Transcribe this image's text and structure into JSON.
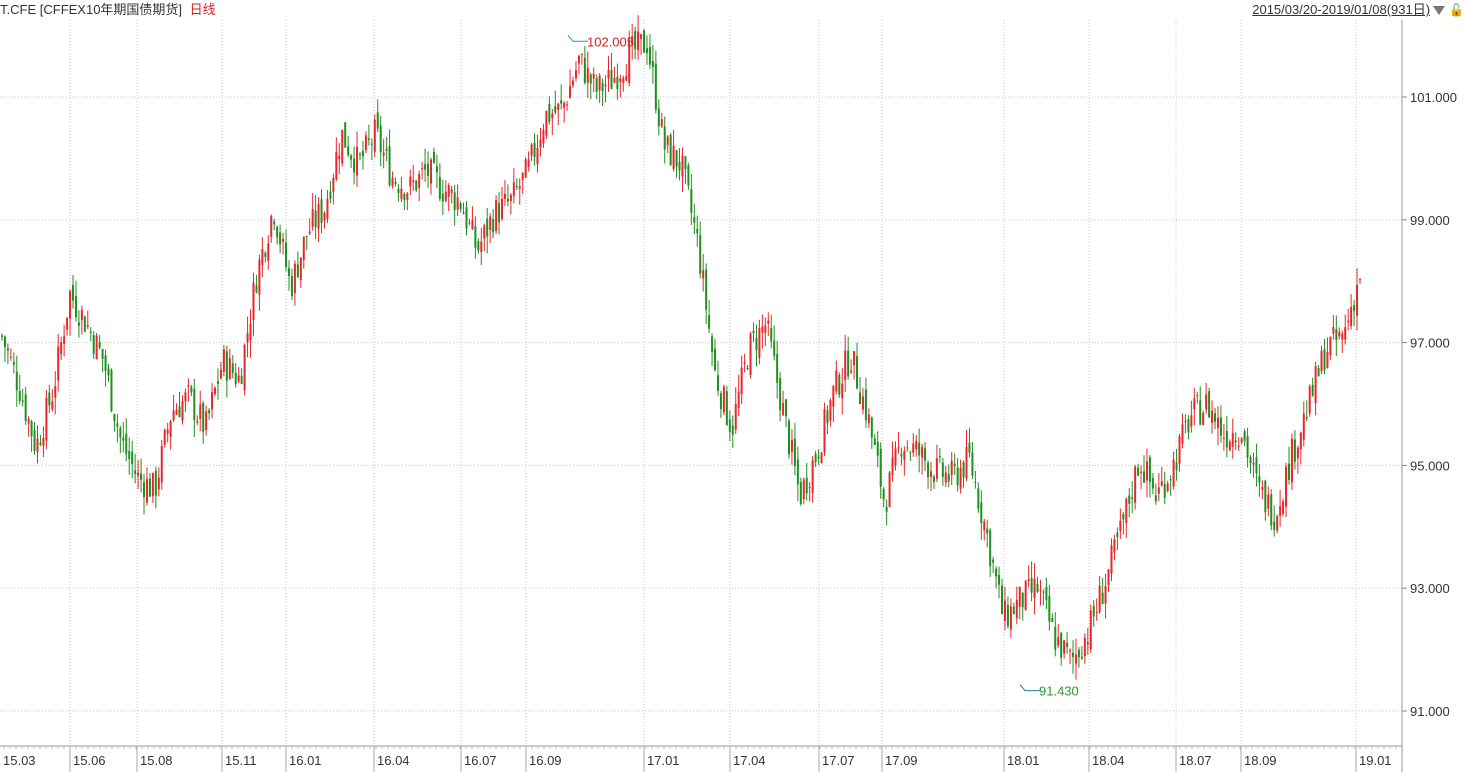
{
  "header": {
    "symbol": "T.CFE",
    "name": "[CFFEX10年期国债期货]",
    "period": "日线",
    "date_range": "2015/03/20-2019/01/08(931日)",
    "dropdown_icon": "chevron-down-icon",
    "lock_icon": "lock-icon"
  },
  "colors": {
    "up": "#e8262b",
    "down": "#1f8f1f",
    "grid": "#c8c8c8",
    "high_annotation": "#d42020",
    "low_annotation": "#2a9a2a"
  },
  "chart_data": {
    "type": "line",
    "title": "",
    "xlabel": "",
    "ylabel": "",
    "ylim": [
      90.4,
      102.6
    ],
    "grid": true,
    "y_ticks": [
      "91.000",
      "93.000",
      "95.000",
      "97.000",
      "99.000",
      "101.000"
    ],
    "x_ticks": [
      "15.03",
      "15.06",
      "15.08",
      "15.11",
      "16.01",
      "16.04",
      "16.07",
      "16.09",
      "17.01",
      "17.04",
      "17.07",
      "17.09",
      "18.01",
      "18.04",
      "18.07",
      "18.09",
      "19.01"
    ],
    "annotations": [
      {
        "label": "102.005",
        "value": 102.005,
        "type": "high"
      },
      {
        "label": "91.430",
        "value": 91.43,
        "type": "low"
      }
    ],
    "series": [
      {
        "values": [
          97.1,
          96.3,
          95.3,
          96.2,
          97.8,
          97.3,
          96.7,
          95.4,
          94.8,
          94.6,
          95.9,
          96.1,
          95.6,
          96.7,
          96.4,
          98.1,
          99.2,
          97.9,
          98.8,
          99.2,
          100.4,
          99.9,
          100.4,
          99.7,
          99.5,
          99.8,
          99.5,
          99.3,
          98.5,
          99.1,
          99.3,
          99.8,
          100.7,
          100.8,
          101.6,
          101.1,
          101.3,
          101.7,
          101.9,
          100.2,
          99.9,
          98.6,
          96.5,
          95.6,
          96.9,
          97.3,
          95.9,
          94.5,
          95.2,
          96.2,
          96.8,
          95.8,
          94.4,
          95.4,
          95.2,
          94.9,
          94.8,
          95.1,
          93.9,
          92.5,
          92.8,
          93.0,
          92.2,
          91.8,
          92.3,
          93.1,
          94.0,
          95.1,
          94.5,
          95.0,
          95.8,
          96.0,
          95.5,
          95.6,
          94.6,
          94.2,
          95.2,
          96.0,
          96.9,
          97.1,
          98.1
        ]
      }
    ]
  }
}
